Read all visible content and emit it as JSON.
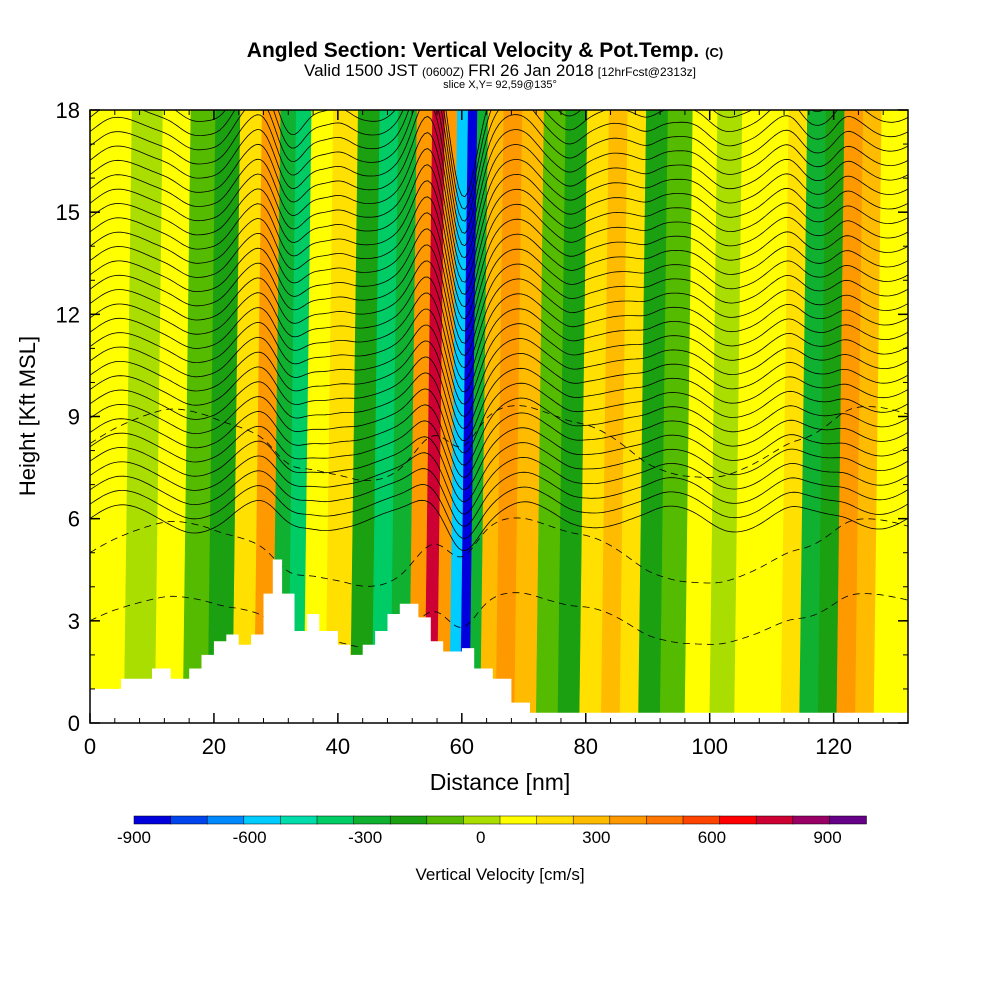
{
  "chart_data": {
    "type": "heatmap",
    "title": "Angled Section: Vertical Velocity & Pot.Temp.",
    "title_mark": "(C)",
    "subtitle": {
      "valid": "Valid 1500 JST",
      "utc": "(0600Z)",
      "date": "FRI 26 Jan 2018",
      "fcst": "[12hrFcst@2313z]"
    },
    "slice_text": "slice X,Y= 92,59@135°",
    "xlabel": "Distance [nm]",
    "ylabel": "Height [Kft MSL]",
    "xlim": [
      0,
      132
    ],
    "ylim": [
      0,
      18
    ],
    "x_ticks": [
      "0",
      "20",
      "40",
      "60",
      "80",
      "100",
      "120"
    ],
    "y_ticks": [
      "0",
      "3",
      "6",
      "9",
      "12",
      "15",
      "18"
    ],
    "colorbar": {
      "label": "Vertical Velocity [cm/s]",
      "range": [
        -900,
        1000
      ],
      "tick_labels": [
        "-900",
        "-600",
        "-300",
        "0",
        "300",
        "600",
        "900"
      ],
      "colors": [
        "#0000dd",
        "#0044ee",
        "#0088ff",
        "#00ccff",
        "#00ddaa",
        "#00cc66",
        "#10b030",
        "#1aa010",
        "#55bb00",
        "#aadd00",
        "#ffff00",
        "#ffe000",
        "#ffbb00",
        "#ff9900",
        "#ff7700",
        "#ff4400",
        "#ff0000",
        "#cc0033",
        "#990066",
        "#660088"
      ]
    },
    "velocity_bands": [
      {
        "x": 3,
        "value": 60
      },
      {
        "x": 8,
        "value": -20
      },
      {
        "x": 13,
        "value": 80
      },
      {
        "x": 17,
        "value": -60
      },
      {
        "x": 21,
        "value": -150
      },
      {
        "x": 25,
        "value": 150
      },
      {
        "x": 28,
        "value": 350
      },
      {
        "x": 31,
        "value": -300
      },
      {
        "x": 33,
        "value": -400
      },
      {
        "x": 36,
        "value": 80
      },
      {
        "x": 40,
        "value": 150
      },
      {
        "x": 44,
        "value": -200
      },
      {
        "x": 47,
        "value": -350
      },
      {
        "x": 50,
        "value": -250
      },
      {
        "x": 53,
        "value": 400
      },
      {
        "x": 55,
        "value": 800
      },
      {
        "x": 57,
        "value": 350
      },
      {
        "x": 59,
        "value": -600
      },
      {
        "x": 60.5,
        "value": -850
      },
      {
        "x": 62,
        "value": -300
      },
      {
        "x": 64,
        "value": 250
      },
      {
        "x": 67,
        "value": 350
      },
      {
        "x": 70,
        "value": 250
      },
      {
        "x": 74,
        "value": -100
      },
      {
        "x": 77,
        "value": -200
      },
      {
        "x": 81,
        "value": 200
      },
      {
        "x": 84,
        "value": 300
      },
      {
        "x": 87,
        "value": 150
      },
      {
        "x": 90,
        "value": -150
      },
      {
        "x": 94,
        "value": -60
      },
      {
        "x": 98,
        "value": 60
      },
      {
        "x": 102,
        "value": -40
      },
      {
        "x": 106,
        "value": 60
      },
      {
        "x": 110,
        "value": 120
      },
      {
        "x": 113,
        "value": 150
      },
      {
        "x": 116,
        "value": -300
      },
      {
        "x": 119,
        "value": -200
      },
      {
        "x": 122,
        "value": 350
      },
      {
        "x": 125,
        "value": 250
      },
      {
        "x": 128,
        "value": 100
      }
    ],
    "terrain": [
      {
        "x": 0,
        "y": 1.0
      },
      {
        "x": 5,
        "y": 1.3
      },
      {
        "x": 10,
        "y": 1.6
      },
      {
        "x": 13,
        "y": 1.3
      },
      {
        "x": 16,
        "y": 1.6
      },
      {
        "x": 18,
        "y": 2.0
      },
      {
        "x": 20,
        "y": 2.4
      },
      {
        "x": 22,
        "y": 2.6
      },
      {
        "x": 24,
        "y": 2.3
      },
      {
        "x": 26,
        "y": 2.6
      },
      {
        "x": 28,
        "y": 3.8
      },
      {
        "x": 29.5,
        "y": 4.8
      },
      {
        "x": 31,
        "y": 3.8
      },
      {
        "x": 33,
        "y": 2.7
      },
      {
        "x": 35,
        "y": 3.2
      },
      {
        "x": 37,
        "y": 2.7
      },
      {
        "x": 40,
        "y": 2.3
      },
      {
        "x": 42,
        "y": 2.0
      },
      {
        "x": 44,
        "y": 2.3
      },
      {
        "x": 46,
        "y": 2.7
      },
      {
        "x": 48,
        "y": 3.2
      },
      {
        "x": 50,
        "y": 3.5
      },
      {
        "x": 53,
        "y": 3.1
      },
      {
        "x": 55,
        "y": 2.4
      },
      {
        "x": 57,
        "y": 2.1
      },
      {
        "x": 60,
        "y": 2.2
      },
      {
        "x": 62,
        "y": 1.6
      },
      {
        "x": 65,
        "y": 1.3
      },
      {
        "x": 68,
        "y": 0.6
      },
      {
        "x": 71,
        "y": 0.3
      },
      {
        "x": 132,
        "y": 0.3
      }
    ]
  }
}
